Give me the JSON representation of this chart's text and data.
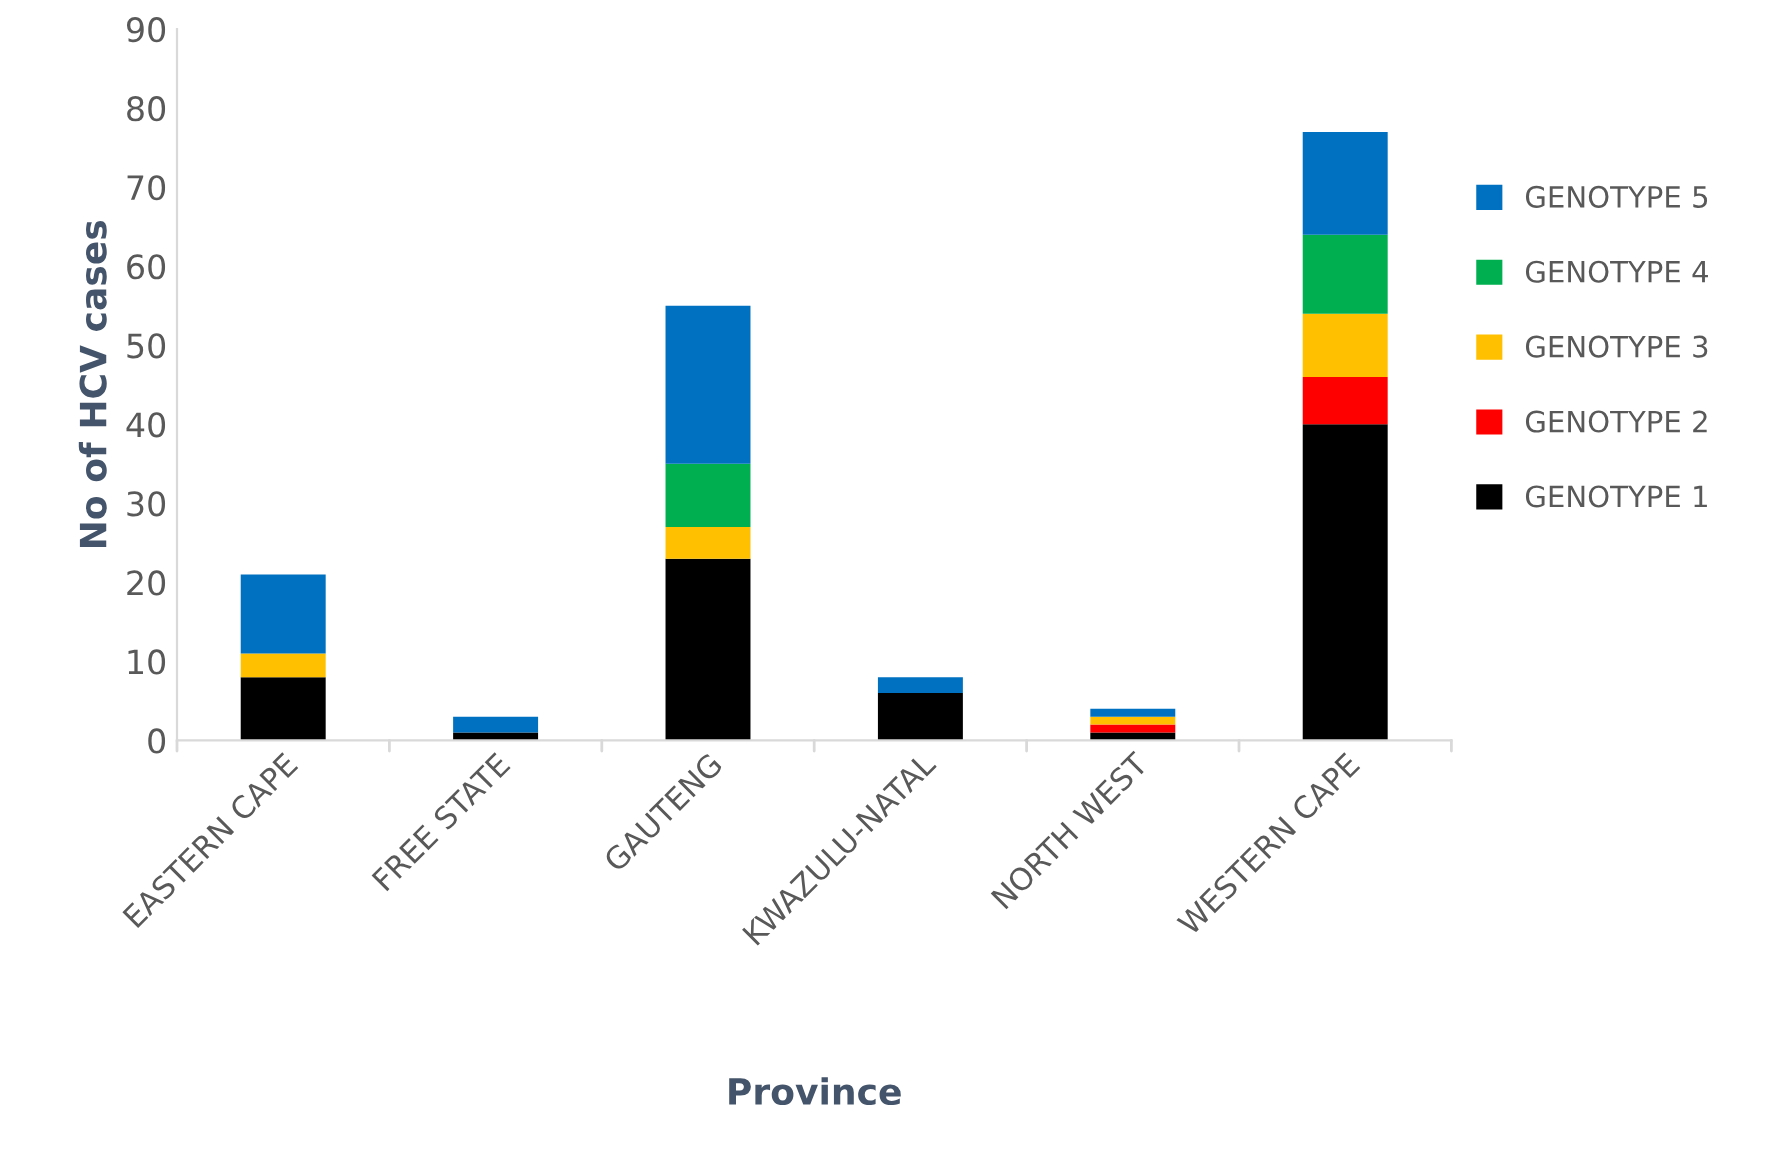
{
  "chart_data": {
    "type": "bar",
    "stacked": true,
    "xlabel": "Province",
    "ylabel": "No of HCV cases",
    "categories": [
      "EASTERN CAPE",
      "FREE STATE",
      "GAUTENG",
      "KWAZULU-NATAL",
      "NORTH WEST",
      "WESTERN CAPE"
    ],
    "series": [
      {
        "name": "GENOTYPE 1",
        "color": "#000000",
        "values": [
          8,
          1,
          23,
          6,
          1,
          40
        ]
      },
      {
        "name": "GENOTYPE 2",
        "color": "#ff0000",
        "values": [
          0,
          0,
          0,
          0,
          1,
          6
        ]
      },
      {
        "name": "GENOTYPE 3",
        "color": "#ffc000",
        "values": [
          3,
          0,
          4,
          0,
          1,
          8
        ]
      },
      {
        "name": "GENOTYPE 4",
        "color": "#00b050",
        "values": [
          0,
          0,
          8,
          0,
          0,
          10
        ]
      },
      {
        "name": "GENOTYPE 5",
        "color": "#0070c0",
        "values": [
          10,
          2,
          20,
          2,
          1,
          13
        ]
      }
    ],
    "ylim": [
      0,
      90
    ],
    "yticks": [
      0,
      10,
      20,
      30,
      40,
      50,
      60,
      70,
      80,
      90
    ],
    "grid": false,
    "legend": "right"
  }
}
